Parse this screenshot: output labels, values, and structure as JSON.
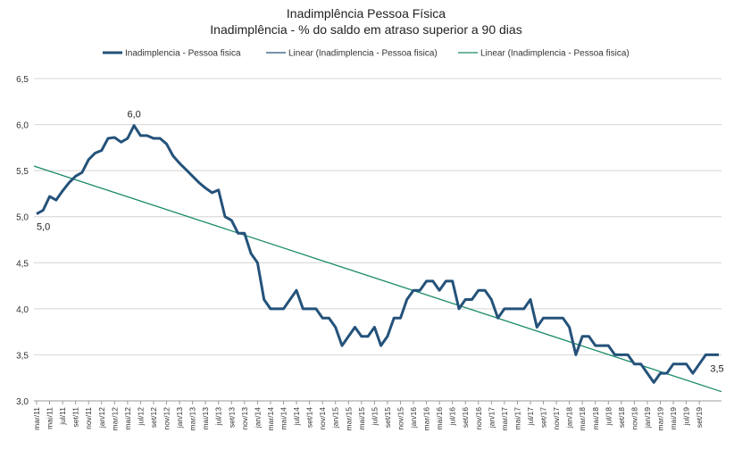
{
  "chart_data": {
    "type": "line",
    "title": "Inadimplência  Pessoa Física",
    "subtitle": "Inadimplência  - % do saldo em atraso superior  a 90 dias",
    "legend": {
      "placement": "top",
      "entries": [
        {
          "label": "Inadimplencia - Pessoa fisica",
          "color": "#24527a"
        },
        {
          "label": "Linear (Inadimplencia - Pessoa fisica)",
          "color": "#24527a"
        },
        {
          "label": "Linear (Inadimplencia - Pessoa fisica)",
          "color": "#1a8a6a"
        }
      ]
    },
    "ylim": [
      3.0,
      6.5
    ],
    "yticks": [
      "3,0",
      "3,5",
      "4,0",
      "4,5",
      "5,0",
      "5,5",
      "6,0",
      "6,5"
    ],
    "grid": true,
    "xtick_labels": [
      "mar/11",
      "mai/11",
      "jul/11",
      "set/11",
      "nov/11",
      "jan/12",
      "mar/12",
      "mai/12",
      "jul/12",
      "set/12",
      "nov/12",
      "jan/13",
      "mar/13",
      "mai/13",
      "jul/13",
      "set/13",
      "nov/13",
      "jan/14",
      "mar/14",
      "mai/14",
      "jul/14",
      "set/14",
      "nov/14",
      "jan/15",
      "mar/15",
      "mai/15",
      "jul/15",
      "set/15",
      "nov/15",
      "jan/16",
      "mar/16",
      "mai/16",
      "jul/16",
      "set/16",
      "nov/16",
      "jan/17",
      "mar/17",
      "mai/17",
      "jul/17",
      "set/17",
      "nov/17",
      "jan/18",
      "mar/18",
      "mai/18",
      "jul/18",
      "set/18",
      "nov/18",
      "jan/19",
      "mar/19",
      "mai/19",
      "jul/19",
      "set/19"
    ],
    "series": [
      {
        "name": "Inadimplencia - Pessoa fisica",
        "color": "#24527a",
        "values": [
          5.03,
          5.07,
          5.22,
          5.18,
          5.28,
          5.37,
          5.44,
          5.48,
          5.62,
          5.69,
          5.72,
          5.85,
          5.86,
          5.81,
          5.85,
          5.99,
          5.88,
          5.88,
          5.85,
          5.85,
          5.79,
          5.66,
          5.58,
          5.51,
          5.44,
          5.37,
          5.31,
          5.26,
          5.29,
          5.0,
          4.96,
          4.82,
          4.82,
          4.6,
          4.5,
          4.1,
          4.0,
          4.0,
          4.0,
          4.1,
          4.2,
          4.0,
          4.0,
          4.0,
          3.9,
          3.9,
          3.8,
          3.6,
          3.7,
          3.8,
          3.7,
          3.7,
          3.8,
          3.6,
          3.7,
          3.9,
          3.9,
          4.1,
          4.2,
          4.2,
          4.3,
          4.3,
          4.2,
          4.3,
          4.3,
          4.0,
          4.1,
          4.1,
          4.2,
          4.2,
          4.1,
          3.9,
          4.0,
          4.0,
          4.0,
          4.0,
          4.1,
          3.8,
          3.9,
          3.9,
          3.9,
          3.9,
          3.8,
          3.5,
          3.7,
          3.7,
          3.6,
          3.6,
          3.6,
          3.5,
          3.5,
          3.5,
          3.4,
          3.4,
          3.3,
          3.2,
          3.3,
          3.3,
          3.4,
          3.4,
          3.4,
          3.3,
          3.4,
          3.5,
          3.5,
          3.5
        ]
      }
    ],
    "trendline": {
      "name": "Linear (Inadimplencia - Pessoa fisica)",
      "color": "#1a8a6a",
      "start": 5.55,
      "end": 3.1
    },
    "annotations": [
      {
        "text": "6,0",
        "index": 15
      },
      {
        "text": "5,0",
        "index": 0
      },
      {
        "text": "3,5",
        "index": 105
      }
    ]
  }
}
